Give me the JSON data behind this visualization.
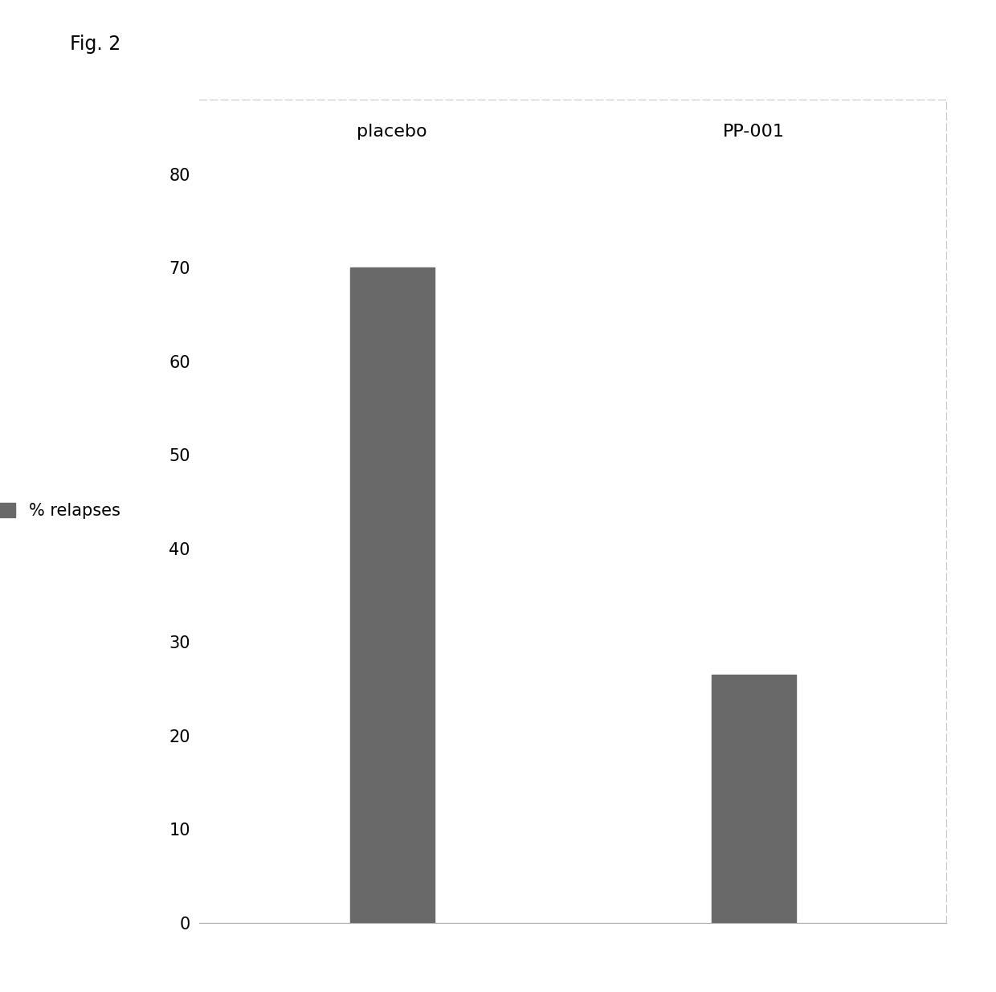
{
  "categories": [
    "placebo",
    "PP-001"
  ],
  "values": [
    70,
    26.5
  ],
  "bar_color": "#696969",
  "bar_width": 0.35,
  "ylim": [
    0,
    88
  ],
  "yticks": [
    0,
    10,
    20,
    30,
    40,
    50,
    60,
    70,
    80
  ],
  "legend_label": "% relapses",
  "fig_label": "Fig. 2",
  "background_color": "#ffffff",
  "plot_bg_color": "#ffffff",
  "border_color": "#c8c8c8",
  "x_positions": [
    1,
    2.5
  ],
  "xlim": [
    0.2,
    3.3
  ],
  "category_label_fontsize": 16,
  "tick_label_fontsize": 15,
  "legend_fontsize": 15,
  "fig_label_fontsize": 17
}
